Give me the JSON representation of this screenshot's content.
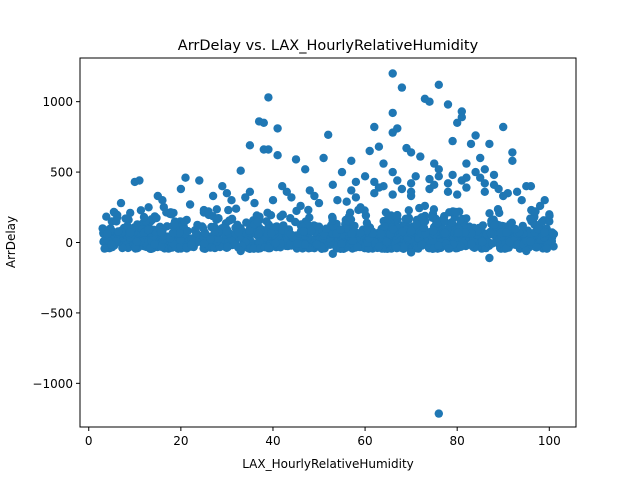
{
  "chart_data": {
    "type": "scatter",
    "title": "ArrDelay vs. LAX_HourlyRelativeHumidity",
    "xlabel": "LAX_HourlyRelativeHumidity",
    "ylabel": "ArrDelay",
    "xlim": [
      -1.9,
      105.8
    ],
    "ylim": [
      -1310,
      1310
    ],
    "xticks": [
      0,
      20,
      40,
      60,
      80,
      100
    ],
    "yticks": [
      -1000,
      -500,
      0,
      500,
      1000
    ],
    "ytick_labels": [
      "−1000",
      "−500",
      "0",
      "500",
      "1000"
    ],
    "grid": false,
    "marker_color": "#1f77b4",
    "band": {
      "x_min": 3,
      "x_max": 101,
      "y_low": -45,
      "y_high": 60,
      "n": 900
    },
    "points": [
      [
        66,
        1200
      ],
      [
        76,
        1120
      ],
      [
        68,
        1100
      ],
      [
        39,
        1030
      ],
      [
        73,
        1020
      ],
      [
        74,
        1000
      ],
      [
        78,
        980
      ],
      [
        81,
        930
      ],
      [
        66,
        920
      ],
      [
        81,
        890
      ],
      [
        37,
        860
      ],
      [
        38,
        850
      ],
      [
        80,
        850
      ],
      [
        41,
        810
      ],
      [
        67,
        810
      ],
      [
        52,
        765
      ],
      [
        84,
        760
      ],
      [
        66,
        780
      ],
      [
        62,
        820
      ],
      [
        90,
        820
      ],
      [
        79,
        720
      ],
      [
        35,
        690
      ],
      [
        69,
        670
      ],
      [
        87,
        700
      ],
      [
        83,
        700
      ],
      [
        38,
        660
      ],
      [
        39,
        660
      ],
      [
        70,
        640
      ],
      [
        41,
        620
      ],
      [
        63,
        680
      ],
      [
        61,
        650
      ],
      [
        92,
        640
      ],
      [
        51,
        600
      ],
      [
        45,
        590
      ],
      [
        57,
        580
      ],
      [
        85,
        600
      ],
      [
        72,
        610
      ],
      [
        75,
        560
      ],
      [
        92,
        580
      ],
      [
        47,
        520
      ],
      [
        55,
        500
      ],
      [
        21,
        460
      ],
      [
        24,
        440
      ],
      [
        33,
        510
      ],
      [
        64,
        560
      ],
      [
        88,
        480
      ],
      [
        96,
        400
      ],
      [
        11,
        440
      ],
      [
        10,
        430
      ],
      [
        29,
        400
      ],
      [
        58,
        430
      ],
      [
        76,
        470
      ],
      [
        86,
        520
      ],
      [
        15,
        330
      ],
      [
        20,
        380
      ],
      [
        27,
        330
      ],
      [
        42,
        400
      ],
      [
        53,
        410
      ],
      [
        62,
        430
      ],
      [
        95,
        400
      ],
      [
        16,
        300
      ],
      [
        35,
        360
      ],
      [
        48,
        370
      ],
      [
        68,
        380
      ],
      [
        99,
        300
      ],
      [
        7,
        280
      ],
      [
        13,
        250
      ],
      [
        31,
        300
      ],
      [
        44,
        320
      ],
      [
        80,
        340
      ],
      [
        91,
        350
      ],
      [
        22,
        270
      ],
      [
        56,
        290
      ],
      [
        70,
        330
      ],
      [
        5,
        150
      ],
      [
        9,
        210
      ],
      [
        25,
        230
      ],
      [
        59,
        250
      ],
      [
        73,
        260
      ],
      [
        98,
        260
      ],
      [
        3,
        100
      ],
      [
        4,
        60
      ],
      [
        101,
        60
      ],
      [
        100,
        150
      ],
      [
        100,
        200
      ],
      [
        78,
        420
      ],
      [
        82,
        460
      ],
      [
        84,
        500
      ],
      [
        86,
        420
      ],
      [
        89,
        380
      ],
      [
        60,
        470
      ],
      [
        64,
        400
      ],
      [
        66,
        500
      ],
      [
        70,
        420
      ],
      [
        74,
        450
      ],
      [
        76,
        520
      ],
      [
        79,
        480
      ],
      [
        82,
        560
      ],
      [
        18,
        200
      ],
      [
        26,
        220
      ],
      [
        32,
        240
      ],
      [
        36,
        280
      ],
      [
        40,
        300
      ],
      [
        46,
        260
      ],
      [
        50,
        280
      ],
      [
        54,
        300
      ],
      [
        58,
        320
      ],
      [
        62,
        350
      ],
      [
        66,
        340
      ],
      [
        70,
        360
      ],
      [
        74,
        380
      ],
      [
        78,
        360
      ],
      [
        82,
        390
      ],
      [
        86,
        360
      ],
      [
        90,
        330
      ],
      [
        94,
        300
      ],
      [
        97,
        220
      ],
      [
        12,
        180
      ],
      [
        8,
        170
      ],
      [
        6,
        150
      ],
      [
        30,
        350
      ],
      [
        34,
        320
      ],
      [
        43,
        360
      ],
      [
        49,
        330
      ],
      [
        57,
        370
      ],
      [
        63,
        390
      ],
      [
        67,
        440
      ],
      [
        71,
        470
      ],
      [
        75,
        410
      ],
      [
        81,
        440
      ],
      [
        85,
        460
      ],
      [
        88,
        410
      ],
      [
        93,
        360
      ],
      [
        53,
        -80
      ],
      [
        87,
        -110
      ],
      [
        95,
        -60
      ],
      [
        33,
        -60
      ],
      [
        70,
        -70
      ],
      [
        76,
        -1215
      ]
    ]
  }
}
